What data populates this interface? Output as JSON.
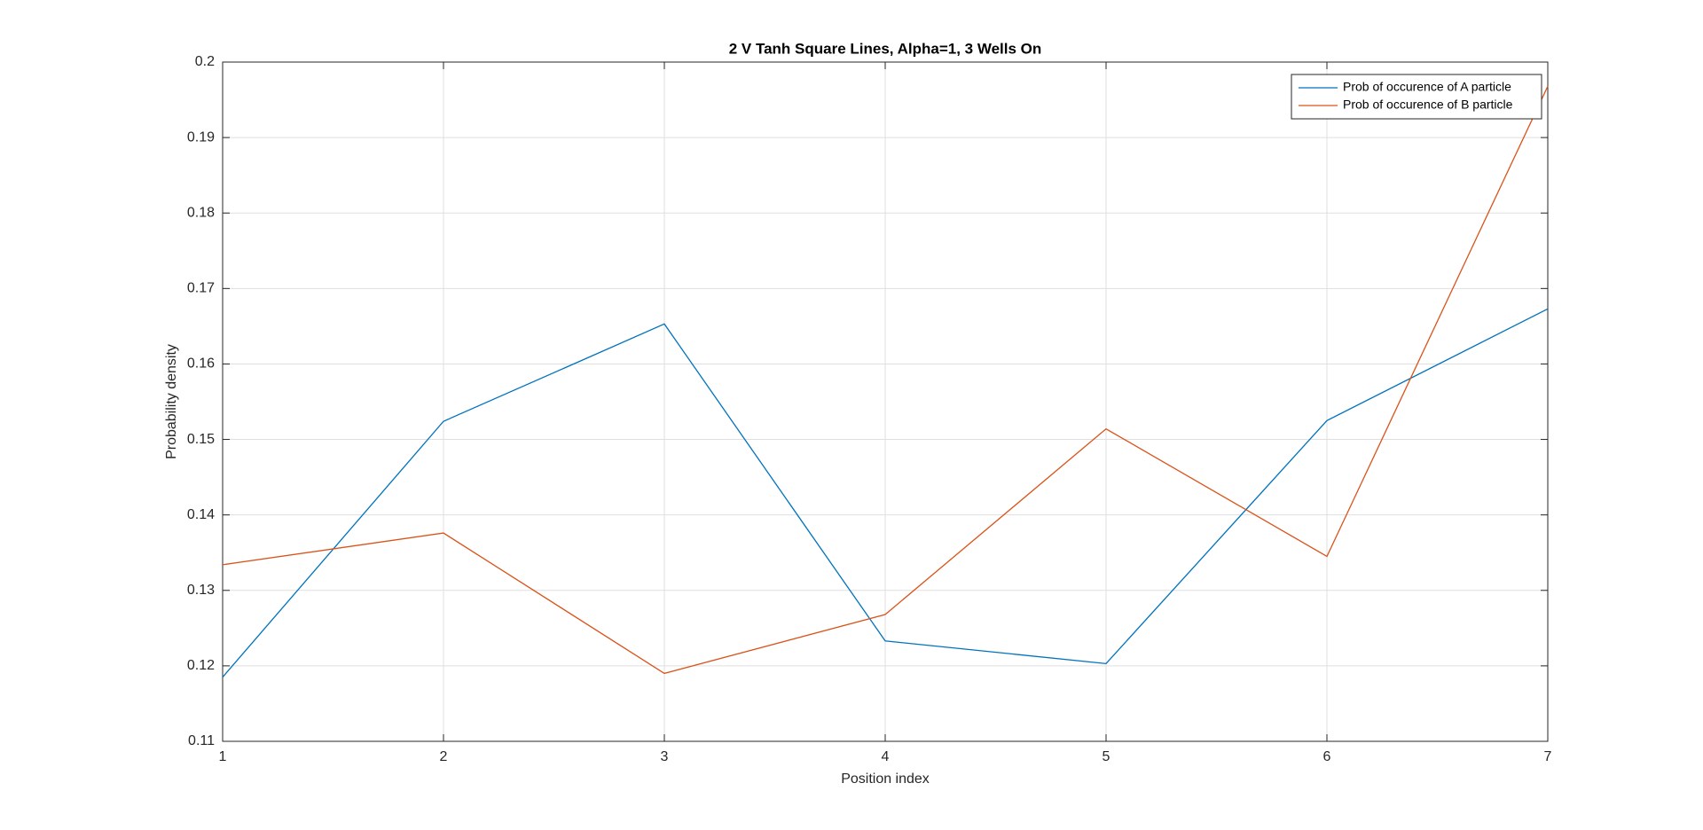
{
  "chart_data": {
    "type": "line",
    "title": "2 V Tanh Square Lines, Alpha=1, 3 Wells On",
    "x_label": "Position index",
    "y_label": "Probability density",
    "x": [
      1,
      2,
      3,
      4,
      5,
      6,
      7
    ],
    "series": [
      {
        "name": "Prob of occurence of A particle",
        "color": "#0072bd",
        "values": [
          0.1185,
          0.1524,
          0.1653,
          0.1233,
          0.1203,
          0.1525,
          0.1673
        ]
      },
      {
        "name": "Prob of occurence of B particle",
        "color": "#d95319",
        "values": [
          0.1334,
          0.1376,
          0.119,
          0.1268,
          0.1514,
          0.1345,
          0.1968
        ]
      }
    ],
    "xlim": [
      1,
      7
    ],
    "xticks": [
      1,
      2,
      3,
      4,
      5,
      6,
      7
    ],
    "ylim": [
      0.11,
      0.2
    ],
    "yticks": [
      0.11,
      0.12,
      0.13,
      0.14,
      0.15,
      0.16,
      0.17,
      0.18,
      0.19,
      0.2
    ],
    "grid": true,
    "legend": "top-right"
  }
}
